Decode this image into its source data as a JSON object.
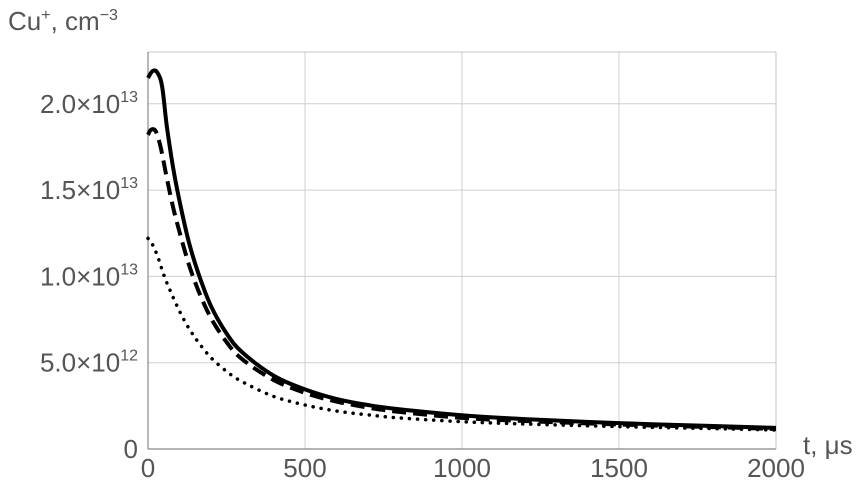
{
  "chart_data": {
    "type": "line",
    "xlabel": "t, μs",
    "ylabel_base": "Cu",
    "ylabel_base_sup": "+",
    "ylabel_unit": ", cm",
    "ylabel_unit_sup": "−3",
    "xlim": [
      0,
      2000
    ],
    "ylim": [
      0,
      23000000000000.0
    ],
    "grid": true,
    "x_ticks": [
      {
        "value": 0,
        "label": "0"
      },
      {
        "value": 500,
        "label": "500"
      },
      {
        "value": 1000,
        "label": "1000"
      },
      {
        "value": 1500,
        "label": "1500"
      },
      {
        "value": 2000,
        "label": "2000"
      }
    ],
    "y_ticks": [
      {
        "value": 0,
        "mant": "0",
        "exp": ""
      },
      {
        "value": 5000000000000.0,
        "mant": "5.0",
        "exp": "12"
      },
      {
        "value": 10000000000000.0,
        "mant": "1.0",
        "exp": "13"
      },
      {
        "value": 15000000000000.0,
        "mant": "1.5",
        "exp": "13"
      },
      {
        "value": 20000000000000.0,
        "mant": "2.0",
        "exp": "13"
      }
    ],
    "series": [
      {
        "style": "solid",
        "x": [
          0,
          15,
          30,
          45,
          60,
          80,
          100,
          130,
          160,
          200,
          250,
          300,
          400,
          500,
          600,
          700,
          800,
          1000,
          1200,
          1500,
          1800,
          2000
        ],
        "y": [
          21500000000000.0,
          21900000000000.0,
          21800000000000.0,
          21000000000000.0,
          18700000000000.0,
          16300000000000.0,
          14400000000000.0,
          12000000000000.0,
          10200000000000.0,
          8300000000000.0,
          6700000000000.0,
          5600000000000.0,
          4250000000000.0,
          3450000000000.0,
          2900000000000.0,
          2550000000000.0,
          2300000000000.0,
          1950000000000.0,
          1730000000000.0,
          1500000000000.0,
          1330000000000.0,
          1220000000000.0
        ]
      },
      {
        "style": "dashed",
        "x": [
          0,
          10,
          25,
          40,
          60,
          80,
          100,
          130,
          160,
          200,
          250,
          300,
          400,
          500,
          600,
          700,
          800,
          1000,
          1200,
          1500,
          1800,
          2000
        ],
        "y": [
          18200000000000.0,
          18500000000000.0,
          18400000000000.0,
          17500000000000.0,
          15700000000000.0,
          14000000000000.0,
          12600000000000.0,
          10700000000000.0,
          9200000000000.0,
          7600000000000.0,
          6200000000000.0,
          5200000000000.0,
          4000000000000.0,
          3250000000000.0,
          2750000000000.0,
          2400000000000.0,
          2150000000000.0,
          1800000000000.0,
          1620000000000.0,
          1420000000000.0,
          1270000000000.0,
          1160000000000.0
        ]
      },
      {
        "style": "dotted",
        "x": [
          0,
          10,
          30,
          50,
          70,
          100,
          130,
          160,
          200,
          250,
          300,
          400,
          500,
          600,
          700,
          800,
          1000,
          1200,
          1500,
          1800,
          2000
        ],
        "y": [
          12200000000000.0,
          12000000000000.0,
          11200000000000.0,
          10100000000000.0,
          9200000000000.0,
          8000000000000.0,
          7000000000000.0,
          6200000000000.0,
          5300000000000.0,
          4500000000000.0,
          3900000000000.0,
          3050000000000.0,
          2550000000000.0,
          2200000000000.0,
          1980000000000.0,
          1800000000000.0,
          1580000000000.0,
          1450000000000.0,
          1300000000000.0,
          1180000000000.0,
          1100000000000.0
        ]
      }
    ]
  }
}
